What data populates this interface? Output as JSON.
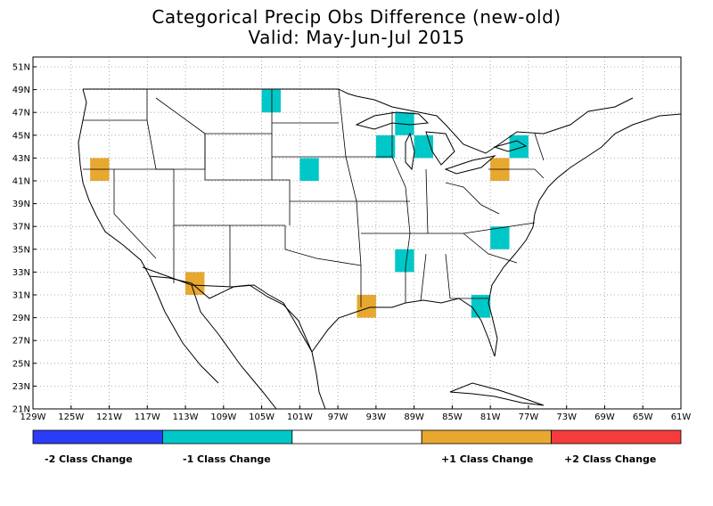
{
  "title": {
    "line1": "Categorical Precip Obs Difference (new-old)",
    "line2": "Valid: May-Jun-Jul 2015"
  },
  "map": {
    "lon_ticks": [
      "129W",
      "125W",
      "121W",
      "117W",
      "113W",
      "109W",
      "105W",
      "101W",
      "97W",
      "93W",
      "89W",
      "85W",
      "81W",
      "77W",
      "73W",
      "69W",
      "65W",
      "61W"
    ],
    "lat_ticks": [
      "51N",
      "49N",
      "47N",
      "45N",
      "43N",
      "41N",
      "39N",
      "37N",
      "35N",
      "33N",
      "31N",
      "29N",
      "27N",
      "25N",
      "23N",
      "21N"
    ],
    "lon_range": [
      -129,
      -61
    ],
    "lat_range": [
      21,
      52
    ]
  },
  "colors": {
    "minus2": "#2a3cf5",
    "minus1": "#00c8c8",
    "none": "#ffffff",
    "plus1": "#e8a830",
    "plus2": "#f53c3c"
  },
  "cells": [
    {
      "lon": -104.0,
      "lat": 48.0,
      "change": -1
    },
    {
      "lon": -90.0,
      "lat": 46.0,
      "change": -1
    },
    {
      "lon": -92.0,
      "lat": 44.0,
      "change": -1
    },
    {
      "lon": -88.0,
      "lat": 44.0,
      "change": -1
    },
    {
      "lon": -100.0,
      "lat": 42.0,
      "change": -1
    },
    {
      "lon": -78.0,
      "lat": 44.0,
      "change": -1
    },
    {
      "lon": -80.0,
      "lat": 36.0,
      "change": -1
    },
    {
      "lon": -90.0,
      "lat": 34.0,
      "change": -1
    },
    {
      "lon": -82.0,
      "lat": 30.0,
      "change": -1
    },
    {
      "lon": -122.0,
      "lat": 42.0,
      "change": 1
    },
    {
      "lon": -80.0,
      "lat": 42.0,
      "change": 1
    },
    {
      "lon": -112.0,
      "lat": 32.0,
      "change": 1
    },
    {
      "lon": -94.0,
      "lat": 30.0,
      "change": 1
    }
  ],
  "legend": {
    "items": [
      {
        "label": "-2 Class Change",
        "color": "#2a3cf5"
      },
      {
        "label": "-1 Class Change",
        "color": "#00c8c8"
      },
      {
        "label": "",
        "color": "#ffffff"
      },
      {
        "label": "+1 Class Change",
        "color": "#e8a830"
      },
      {
        "label": "+2 Class Change",
        "color": "#f53c3c"
      }
    ]
  }
}
